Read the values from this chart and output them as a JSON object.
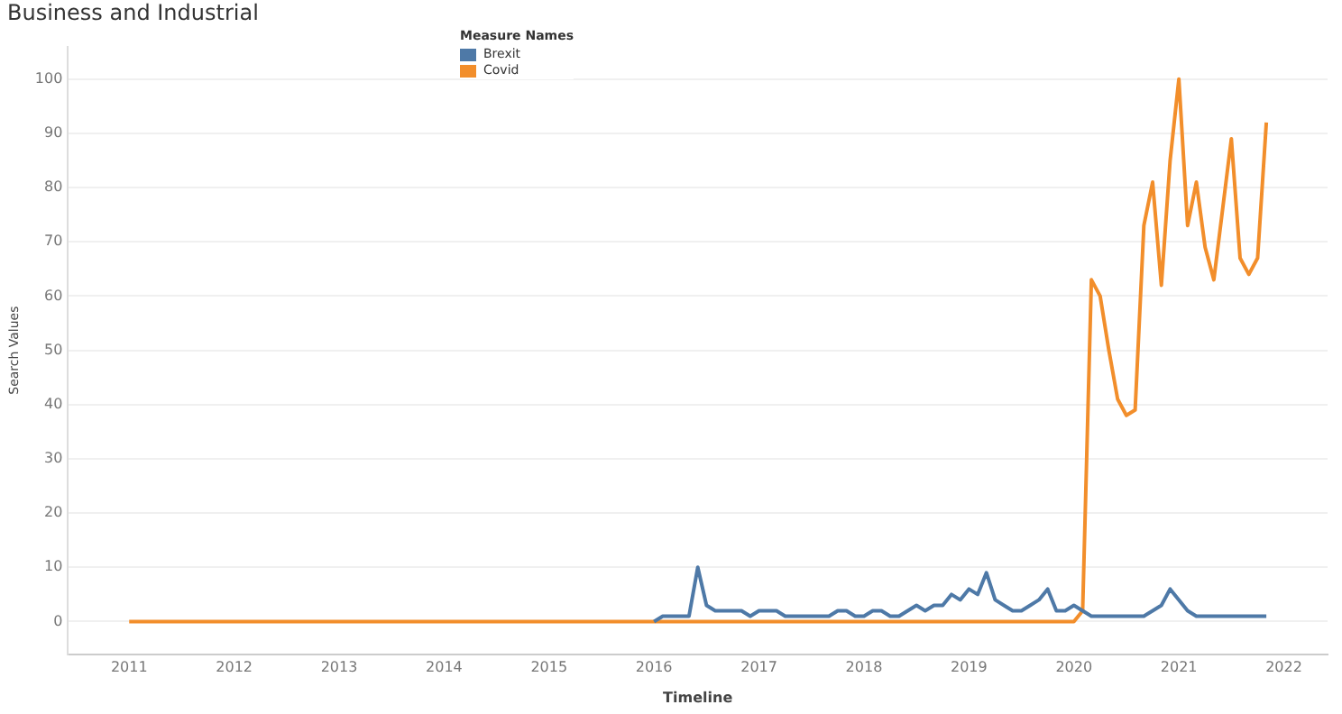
{
  "chart_data": {
    "type": "line",
    "title": "Business and Industrial",
    "xlabel": "Timeline",
    "ylabel": "Search Values",
    "legend_title": "Measure Names",
    "legend": "top",
    "grid": "y",
    "marker": "none",
    "line_style": "solid",
    "xlim": [
      "2010-06",
      "2022-06"
    ],
    "xticks": [
      {
        "value": "2011",
        "label": "2011"
      },
      {
        "value": "2012",
        "label": "2012"
      },
      {
        "value": "2013",
        "label": "2013"
      },
      {
        "value": "2014",
        "label": "2014"
      },
      {
        "value": "2015",
        "label": "2015"
      },
      {
        "value": "2016",
        "label": "2016"
      },
      {
        "value": "2017",
        "label": "2017"
      },
      {
        "value": "2018",
        "label": "2018"
      },
      {
        "value": "2019",
        "label": "2019"
      },
      {
        "value": "2020",
        "label": "2020"
      },
      {
        "value": "2021",
        "label": "2021"
      },
      {
        "value": "2022",
        "label": "2022"
      }
    ],
    "ylim": [
      -6,
      106
    ],
    "yticks": [
      0,
      10,
      20,
      30,
      40,
      50,
      60,
      70,
      80,
      90,
      100
    ],
    "series": [
      {
        "name": "Brexit",
        "color": "#4e79a7",
        "x": [
          "2016-01",
          "2016-02",
          "2016-03",
          "2016-04",
          "2016-05",
          "2016-06",
          "2016-07",
          "2016-08",
          "2016-09",
          "2016-10",
          "2016-11",
          "2016-12",
          "2017-01",
          "2017-02",
          "2017-03",
          "2017-04",
          "2017-05",
          "2017-06",
          "2017-07",
          "2017-08",
          "2017-09",
          "2017-10",
          "2017-11",
          "2017-12",
          "2018-01",
          "2018-02",
          "2018-03",
          "2018-04",
          "2018-05",
          "2018-06",
          "2018-07",
          "2018-08",
          "2018-09",
          "2018-10",
          "2018-11",
          "2018-12",
          "2019-01",
          "2019-02",
          "2019-03",
          "2019-04",
          "2019-05",
          "2019-06",
          "2019-07",
          "2019-08",
          "2019-09",
          "2019-10",
          "2019-11",
          "2019-12",
          "2020-01",
          "2020-02",
          "2020-03",
          "2020-04",
          "2020-05",
          "2020-06",
          "2020-07",
          "2020-08",
          "2020-09",
          "2020-10",
          "2020-11",
          "2020-12",
          "2021-01",
          "2021-02",
          "2021-03",
          "2021-04",
          "2021-05",
          "2021-06",
          "2021-07",
          "2021-08",
          "2021-09",
          "2021-10",
          "2021-11"
        ],
        "values": [
          0,
          1,
          1,
          1,
          1,
          10,
          3,
          2,
          2,
          2,
          2,
          1,
          2,
          2,
          2,
          1,
          1,
          1,
          1,
          1,
          1,
          2,
          2,
          1,
          1,
          2,
          2,
          1,
          1,
          2,
          3,
          2,
          3,
          3,
          5,
          4,
          6,
          5,
          9,
          4,
          3,
          2,
          2,
          3,
          4,
          6,
          2,
          2,
          3,
          2,
          1,
          1,
          1,
          1,
          1,
          1,
          1,
          2,
          3,
          6,
          4,
          2,
          1,
          1,
          1,
          1,
          1,
          1,
          1,
          1,
          1
        ]
      },
      {
        "name": "Covid",
        "color": "#f28e2b",
        "x": [
          "2011-01",
          "2020-01",
          "2020-02",
          "2020-03",
          "2020-04",
          "2020-05",
          "2020-06",
          "2020-07",
          "2020-08",
          "2020-09",
          "2020-10",
          "2020-11",
          "2020-12",
          "2021-01",
          "2021-02",
          "2021-03",
          "2021-04",
          "2021-05",
          "2021-06",
          "2021-07",
          "2021-08",
          "2021-09",
          "2021-10",
          "2021-11"
        ],
        "values": [
          0,
          0,
          2,
          63,
          60,
          50,
          41,
          38,
          39,
          73,
          81,
          62,
          85,
          100,
          73,
          81,
          69,
          63,
          76,
          89,
          67,
          64,
          67,
          92
        ]
      }
    ]
  }
}
